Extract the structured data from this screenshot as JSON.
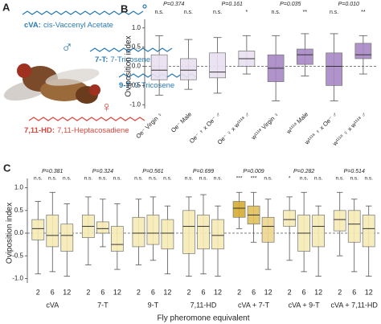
{
  "panel_a": {
    "letter": "A",
    "pheromones": [
      {
        "abbr": "cVA:",
        "name": "cis-Vaccenyl Acetate",
        "color": "#2a7ab8"
      },
      {
        "abbr": "7-T:",
        "name": "7-Tricosene",
        "color": "#2a7ab8"
      },
      {
        "abbr": "9-T:",
        "name": "9-Tricosene",
        "color": "#2a7ab8"
      },
      {
        "abbr": "7,11-HD:",
        "name": "7,11-Heptacosadiene",
        "color": "#d9463c"
      }
    ],
    "male_symbol": "♂",
    "female_symbol": "♀"
  },
  "chart_data": [
    {
      "type": "box",
      "letter": "B",
      "ylabel": "Oviposition index",
      "ylim": [
        -1.1,
        1.1
      ],
      "yticks": [
        {
          "value": -1,
          "label": "-1.0"
        },
        {
          "value": -0.5,
          "label": "-0.5"
        },
        {
          "value": 0,
          "label": "0.0"
        },
        {
          "value": 0.5,
          "label": "0.5"
        },
        {
          "value": 1,
          "label": "1.0"
        }
      ],
      "categories": [
        "Oe⁻ Virgin ♀",
        "Oe⁻ Male",
        "Oe⁻ ♀ x Oe⁻ ♂",
        "Oe⁻ ♀ x w¹¹¹⁸ ♂",
        "w¹¹¹⁸ Virgin ♀",
        "w¹¹¹⁸ Male",
        "w¹¹¹⁸ ♀ x Oe⁻ ♂",
        "w¹¹¹⁸ ♀ x w¹¹¹⁸ ♂"
      ],
      "colors": [
        "#e9e1f1",
        "#e9e1f1",
        "#e9e1f1",
        "#e9e1f1",
        "#a888c6",
        "#a888c6",
        "#a888c6",
        "#a888c6"
      ],
      "significance": [
        "n.s.",
        "n.s.",
        "n.s.",
        "*",
        "n.s.",
        "**",
        "n.s.",
        "**"
      ],
      "comparisons": [
        "P=0.374",
        "P=0.161",
        "P=0.035",
        "P=0.010"
      ],
      "boxes": [
        {
          "min": -0.75,
          "q1": -0.35,
          "median": -0.1,
          "q3": 0.3,
          "max": 0.8
        },
        {
          "min": -0.6,
          "q1": -0.35,
          "median": -0.1,
          "q3": 0.2,
          "max": 0.7
        },
        {
          "min": -0.7,
          "q1": -0.3,
          "median": -0.15,
          "q3": 0.35,
          "max": 0.75
        },
        {
          "min": -0.2,
          "q1": 0,
          "median": 0.2,
          "q3": 0.4,
          "max": 0.8
        },
        {
          "min": -0.9,
          "q1": -0.4,
          "median": -0.05,
          "q3": 0.3,
          "max": 0.8
        },
        {
          "min": -0.25,
          "q1": 0.05,
          "median": 0.3,
          "q3": 0.45,
          "max": 0.85
        },
        {
          "min": -0.9,
          "q1": -0.5,
          "median": 0,
          "q3": 0.35,
          "max": 0.85
        },
        {
          "min": -0.2,
          "q1": 0.2,
          "median": 0.3,
          "q3": 0.6,
          "max": 0.8
        }
      ]
    },
    {
      "type": "grouped-box",
      "letter": "C",
      "ylabel": "Oviposition index",
      "xlabel": "Fly pheromone equivalent",
      "ylim": [
        -1.1,
        1.1
      ],
      "yticks": [
        {
          "value": -1,
          "label": "-1.0"
        },
        {
          "value": -0.5,
          "label": "-0.5"
        },
        {
          "value": 0,
          "label": "0.0"
        },
        {
          "value": 0.5,
          "label": "0.5"
        },
        {
          "value": 1,
          "label": "1.0"
        }
      ],
      "doses": [
        2,
        6,
        12
      ],
      "groups": [
        {
          "name": "cVA",
          "p": "P=0.381",
          "colors": [
            "#f6ebb5",
            "#f6ebb5",
            "#f6ebb5"
          ],
          "significance": [
            "n.s.",
            "n.s.",
            "n.s."
          ],
          "boxes": [
            {
              "min": -0.9,
              "q1": -0.15,
              "median": 0.1,
              "q3": 0.3,
              "max": 0.7
            },
            {
              "min": -0.85,
              "q1": -0.3,
              "median": -0.05,
              "q3": 0.4,
              "max": 0.9
            },
            {
              "min": -0.95,
              "q1": -0.4,
              "median": -0.05,
              "q3": 0.2,
              "max": 0.65
            }
          ]
        },
        {
          "name": "7-T",
          "p": "P=0.324",
          "colors": [
            "#f6ebb5",
            "#f6ebb5",
            "#f6ebb5"
          ],
          "significance": [
            "n.s.",
            "n.s.",
            "n.s."
          ],
          "boxes": [
            {
              "min": -0.7,
              "q1": -0.1,
              "median": 0.15,
              "q3": 0.4,
              "max": 0.8
            },
            {
              "min": -0.3,
              "q1": 0,
              "median": 0.1,
              "q3": 0.25,
              "max": 0.75
            },
            {
              "min": -0.8,
              "q1": -0.4,
              "median": -0.25,
              "q3": 0.15,
              "max": 0.65
            }
          ]
        },
        {
          "name": "9-T",
          "p": "P=0.561",
          "colors": [
            "#f6ebb5",
            "#f6ebb5",
            "#f6ebb5"
          ],
          "significance": [
            "n.s.",
            "n.s.",
            "n.s."
          ],
          "boxes": [
            {
              "min": -0.7,
              "q1": -0.3,
              "median": 0,
              "q3": 0.35,
              "max": 0.75
            },
            {
              "min": -0.6,
              "q1": -0.25,
              "median": 0,
              "q3": 0.4,
              "max": 0.8
            },
            {
              "min": -0.9,
              "q1": -0.35,
              "median": 0,
              "q3": 0.3,
              "max": 0.6
            }
          ]
        },
        {
          "name": "7,11-HD",
          "p": "P=0.699",
          "colors": [
            "#f6ebb5",
            "#f6ebb5",
            "#f6ebb5"
          ],
          "significance": [
            "n.s.",
            "n.s.",
            "n.s."
          ],
          "boxes": [
            {
              "min": -0.95,
              "q1": -0.45,
              "median": 0.15,
              "q3": 0.5,
              "max": 0.8
            },
            {
              "min": -0.9,
              "q1": -0.35,
              "median": 0.15,
              "q3": 0.4,
              "max": 0.85
            },
            {
              "min": -0.95,
              "q1": -0.35,
              "median": -0.05,
              "q3": 0.3,
              "max": 0.6
            }
          ]
        },
        {
          "name": "cVA + 7-T",
          "p": "P=0.009",
          "colors": [
            "#d6ad33",
            "#e2c25c",
            "#eed78f"
          ],
          "significance": [
            "***",
            "***",
            "n.s."
          ],
          "boxes": [
            {
              "min": 0.1,
              "q1": 0.35,
              "median": 0.55,
              "q3": 0.7,
              "max": 0.9
            },
            {
              "min": -0.2,
              "q1": 0.2,
              "median": 0.4,
              "q3": 0.6,
              "max": 0.9
            },
            {
              "min": -0.8,
              "q1": -0.2,
              "median": 0.15,
              "q3": 0.35,
              "max": 0.75
            }
          ]
        },
        {
          "name": "cVA + 9-T",
          "p": "P=0.282",
          "colors": [
            "#f6ebb5",
            "#f6ebb5",
            "#f6ebb5"
          ],
          "significance": [
            "*",
            "n.s.",
            "n.s."
          ],
          "boxes": [
            {
              "min": -0.6,
              "q1": 0.15,
              "median": 0.3,
              "q3": 0.5,
              "max": 0.8
            },
            {
              "min": -0.85,
              "q1": -0.4,
              "median": 0,
              "q3": 0.4,
              "max": 0.9
            },
            {
              "min": -0.95,
              "q1": -0.3,
              "median": 0.15,
              "q3": 0.4,
              "max": 0.6
            }
          ]
        },
        {
          "name": "cVA + 7,11-HD",
          "p": "P=0.514",
          "colors": [
            "#f6ebb5",
            "#f6ebb5",
            "#f6ebb5"
          ],
          "significance": [
            "n.s.",
            "n.s.",
            "n.s."
          ],
          "boxes": [
            {
              "min": -0.5,
              "q1": 0.05,
              "median": 0.3,
              "q3": 0.5,
              "max": 0.9
            },
            {
              "min": -0.85,
              "q1": -0.2,
              "median": 0.2,
              "q3": 0.5,
              "max": 0.75
            },
            {
              "min": -0.95,
              "q1": -0.3,
              "median": 0.1,
              "q3": 0.4,
              "max": 0.6
            }
          ]
        }
      ]
    }
  ]
}
